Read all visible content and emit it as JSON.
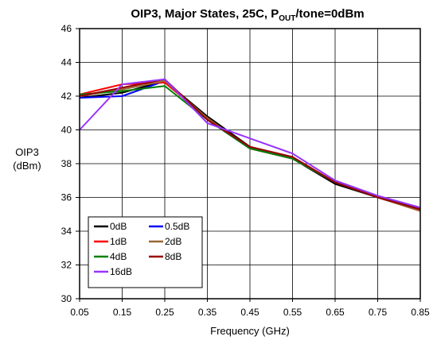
{
  "chart_data": {
    "type": "line",
    "title": "OIP3, Major States, 25C, P",
    "title_sub": "OUT",
    "title_tail": "/tone=0dBm",
    "xlabel": "Frequency (GHz)",
    "ylabel_line1": "OIP3",
    "ylabel_line2": "(dBm)",
    "xlim": [
      0.05,
      0.85
    ],
    "ylim": [
      30,
      46
    ],
    "xticks": [
      "0.05",
      "0.15",
      "0.25",
      "0.35",
      "0.45",
      "0.55",
      "0.65",
      "0.75",
      "0.85"
    ],
    "yticks": [
      "30",
      "32",
      "34",
      "36",
      "38",
      "40",
      "42",
      "44",
      "46"
    ],
    "grid": true,
    "legend_position": "bottom-left",
    "x": [
      0.05,
      0.15,
      0.25,
      0.35,
      0.45,
      0.55,
      0.65,
      0.75,
      0.85
    ],
    "series": [
      {
        "name": "0dB",
        "color": "#000000",
        "values": [
          41.9,
          42.2,
          42.9,
          40.8,
          39.0,
          38.3,
          36.8,
          36.0,
          35.3
        ]
      },
      {
        "name": "0.5dB",
        "color": "#0000ff",
        "values": [
          41.9,
          42.0,
          42.9,
          40.6,
          38.9,
          38.3,
          36.9,
          36.0,
          35.4
        ]
      },
      {
        "name": "1dB",
        "color": "#ff0000",
        "values": [
          42.1,
          42.7,
          42.8,
          40.7,
          38.9,
          38.3,
          36.9,
          36.0,
          35.2
        ]
      },
      {
        "name": "2dB",
        "color": "#996633",
        "values": [
          42.0,
          42.4,
          42.9,
          40.7,
          38.9,
          38.3,
          36.9,
          36.0,
          35.2
        ]
      },
      {
        "name": "4dB",
        "color": "#008000",
        "values": [
          42.1,
          42.3,
          42.6,
          40.6,
          38.9,
          38.3,
          36.9,
          36.0,
          35.3
        ]
      },
      {
        "name": "8dB",
        "color": "#990000",
        "values": [
          42.0,
          42.5,
          43.0,
          40.6,
          39.0,
          38.4,
          36.9,
          36.0,
          35.3
        ]
      },
      {
        "name": "16dB",
        "color": "#9933ff",
        "values": [
          40.0,
          42.7,
          43.0,
          40.4,
          39.5,
          38.6,
          37.0,
          36.1,
          35.4
        ]
      }
    ]
  }
}
